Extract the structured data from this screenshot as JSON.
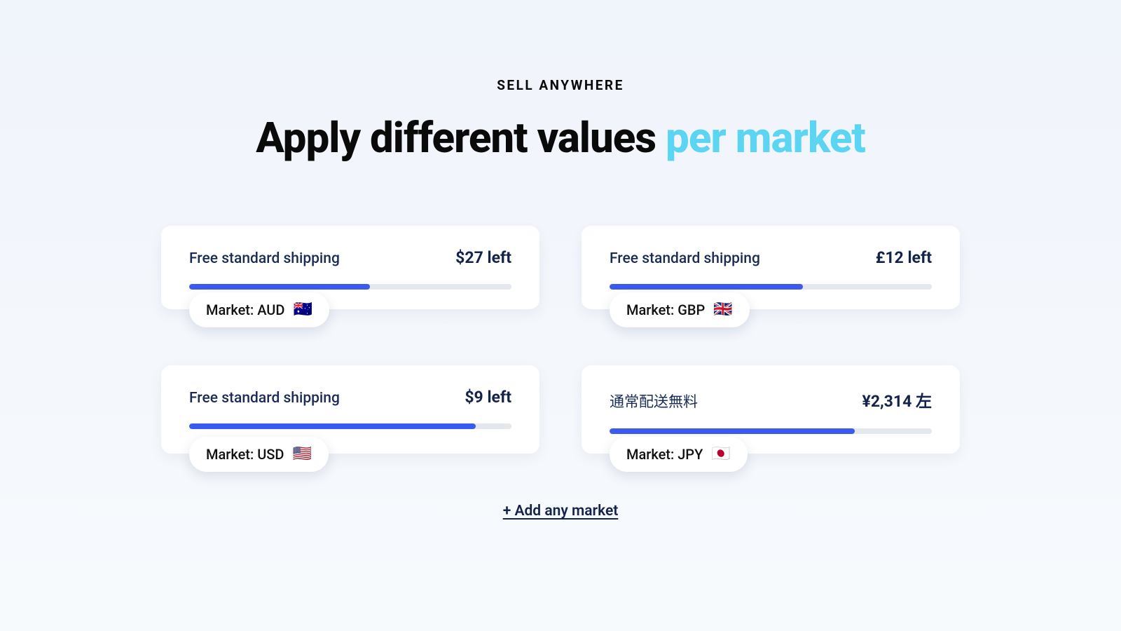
{
  "header": {
    "eyebrow": "SELL ANYWHERE",
    "headline_main": "Apply different values ",
    "headline_accent": "per market",
    "accent_color": "#5cd5f3"
  },
  "cards": [
    {
      "shipping_label": "Free standard shipping",
      "amount_left": "$27 left",
      "progress_percent": 56,
      "market_label": "Market: AUD",
      "flag": "🇦🇺"
    },
    {
      "shipping_label": "Free standard shipping",
      "amount_left": "£12 left",
      "progress_percent": 60,
      "market_label": "Market: GBP",
      "flag": "🇬🇧"
    },
    {
      "shipping_label": "Free standard shipping",
      "amount_left": "$9 left",
      "progress_percent": 89,
      "market_label": "Market: USD",
      "flag": "🇺🇸"
    },
    {
      "shipping_label": "通常配送無料",
      "amount_left": "¥2,314 左",
      "progress_percent": 76,
      "market_label": "Market: JPY",
      "flag": "🇯🇵"
    }
  ],
  "footer": {
    "add_market_label": "+ Add any market"
  },
  "colors": {
    "progress_fill": "#3b5bf0",
    "progress_track": "#e4e7ee",
    "card_bg": "#ffffff",
    "text_dark": "#142349",
    "text_mid": "#1a2b55"
  }
}
